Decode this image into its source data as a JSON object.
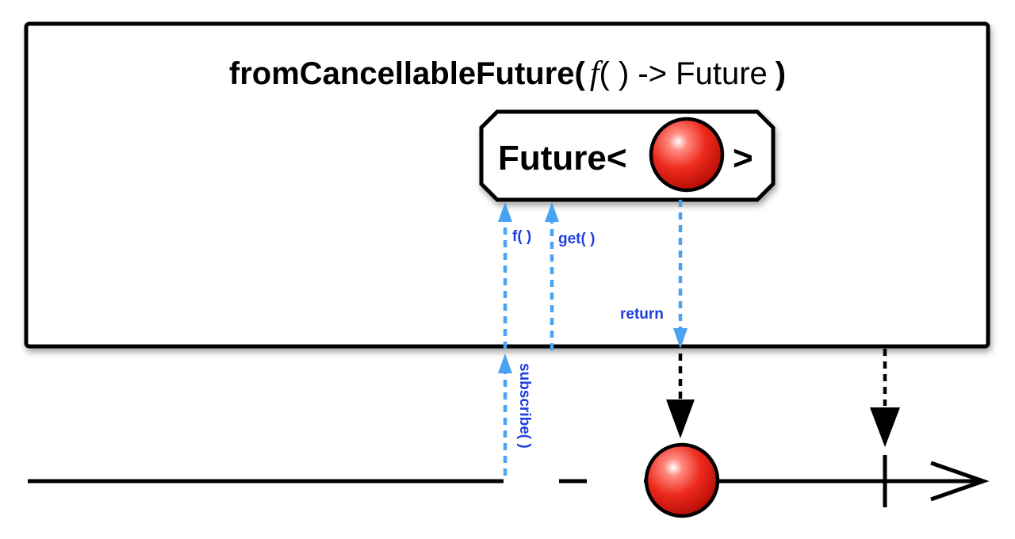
{
  "title": {
    "operator": "fromCancellableFuture(",
    "f": "f",
    "signature": "( ) -> Future",
    "close": ")"
  },
  "future_box": {
    "prefix": "Future<",
    "suffix": ">"
  },
  "labels": {
    "f_call": "f( )",
    "get_call": "get( )",
    "return": "return",
    "subscribe": "subscribe( )"
  },
  "colors": {
    "call_arrow": "#4aa3f0",
    "call_label": "#1f3fe0",
    "marble": "#e8231a",
    "outline": "#000000"
  }
}
